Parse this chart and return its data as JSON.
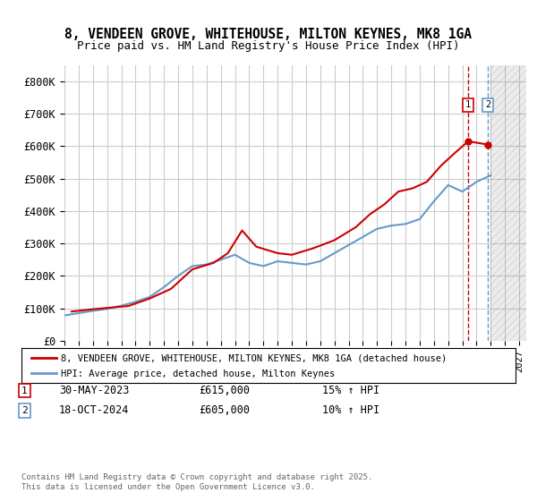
{
  "title_line1": "8, VENDEEN GROVE, WHITEHOUSE, MILTON KEYNES, MK8 1GA",
  "title_line2": "Price paid vs. HM Land Registry's House Price Index (HPI)",
  "xlabel": "",
  "ylabel": "",
  "ylim": [
    0,
    850000
  ],
  "xlim_start": 1995.0,
  "xlim_end": 2027.5,
  "yticks": [
    0,
    100000,
    200000,
    300000,
    400000,
    500000,
    600000,
    700000,
    800000
  ],
  "ytick_labels": [
    "£0",
    "£100K",
    "£200K",
    "£300K",
    "£400K",
    "£500K",
    "£600K",
    "£700K",
    "£800K"
  ],
  "line1_color": "#cc0000",
  "line2_color": "#6699cc",
  "marker1_color": "#cc0000",
  "bg_color": "#ffffff",
  "grid_color": "#cccccc",
  "hatch_color": "#cccccc",
  "legend_line1": "8, VENDEEN GROVE, WHITEHOUSE, MILTON KEYNES, MK8 1GA (detached house)",
  "legend_line2": "HPI: Average price, detached house, Milton Keynes",
  "sale1_date": "30-MAY-2023",
  "sale1_price": "£615,000",
  "sale1_hpi": "15% ↑ HPI",
  "sale2_date": "18-OCT-2024",
  "sale2_price": "£605,000",
  "sale2_hpi": "10% ↑ HPI",
  "footer": "Contains HM Land Registry data © Crown copyright and database right 2025.\nThis data is licensed under the Open Government Licence v3.0.",
  "sale1_year": 2023.41,
  "sale2_year": 2024.8,
  "hpi_data_years": [
    1995,
    1996,
    1997,
    1998,
    1999,
    2000,
    2001,
    2002,
    2003,
    2004,
    2005,
    2006,
    2007,
    2008,
    2009,
    2010,
    2011,
    2012,
    2013,
    2014,
    2015,
    2016,
    2017,
    2018,
    2019,
    2020,
    2021,
    2022,
    2023,
    2024,
    2025
  ],
  "hpi_values": [
    78000,
    85000,
    92000,
    98000,
    108000,
    120000,
    135000,
    165000,
    200000,
    230000,
    235000,
    250000,
    265000,
    240000,
    230000,
    245000,
    240000,
    235000,
    245000,
    270000,
    295000,
    320000,
    345000,
    355000,
    360000,
    375000,
    430000,
    480000,
    460000,
    490000,
    510000
  ],
  "price_data_years": [
    1995.5,
    1997.0,
    1999.5,
    2001.0,
    2002.5,
    2004.0,
    2005.5,
    2006.5,
    2007.5,
    2008.5,
    2010.0,
    2011.0,
    2012.5,
    2014.0,
    2015.5,
    2016.5,
    2017.5,
    2018.5,
    2019.5,
    2020.5,
    2021.5,
    2022.5,
    2023.41,
    2024.8
  ],
  "price_values": [
    90000,
    97000,
    107000,
    130000,
    160000,
    220000,
    240000,
    270000,
    340000,
    290000,
    270000,
    265000,
    285000,
    310000,
    350000,
    390000,
    420000,
    460000,
    470000,
    490000,
    540000,
    580000,
    615000,
    605000
  ]
}
